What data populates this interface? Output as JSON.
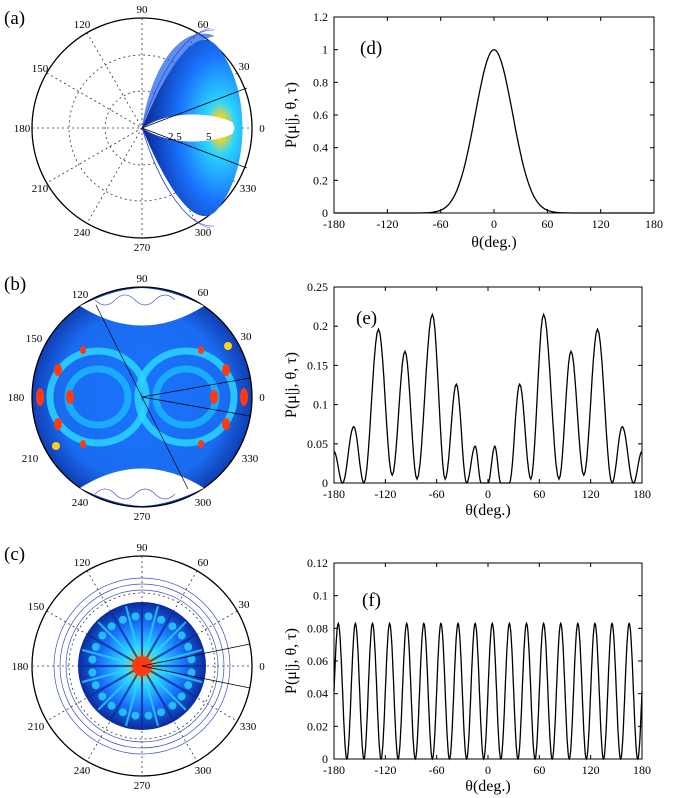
{
  "panel_labels": [
    "(a)",
    "(b)",
    "(c)",
    "(d)",
    "(e)",
    "(f)"
  ],
  "polar": {
    "angle_labels": [
      "90",
      "60",
      "30",
      "0",
      "330",
      "300",
      "270",
      "240",
      "210",
      "180",
      "150",
      "120"
    ],
    "radial_labels_a": [
      "2.5",
      "5"
    ],
    "colors": {
      "background": "#0b2a9a",
      "cool": "#1a74ff",
      "cyan": "#2ad6ff",
      "warm": "#ffd21a",
      "hot": "#ff3a10",
      "contour": "#3a4fc8"
    }
  },
  "chart_data": [
    {
      "panel": "(d)",
      "type": "line",
      "ylabel": "P(μ|j, θ, τ)",
      "xlabel": "θ(deg.)",
      "xlim": [
        -180,
        180
      ],
      "ylim": [
        0,
        1.2
      ],
      "xticks": [
        -180,
        -120,
        -60,
        0,
        60,
        120,
        180
      ],
      "yticks": [
        0,
        0.2,
        0.4,
        0.6,
        0.8,
        1,
        1.2
      ],
      "ytick_labels": [
        "0",
        "0.2",
        "0.4",
        "0.6",
        "0.8",
        "1",
        "1.2"
      ],
      "x": [
        -180,
        -80,
        -60,
        -45,
        -30,
        -20,
        -10,
        0,
        10,
        20,
        30,
        45,
        60,
        80,
        180
      ],
      "y": [
        0,
        0,
        0.01,
        0.08,
        0.33,
        0.61,
        0.88,
        1.0,
        0.88,
        0.61,
        0.33,
        0.08,
        0.01,
        0,
        0
      ],
      "grid": false
    },
    {
      "panel": "(e)",
      "type": "line",
      "ylabel": "P(μ|j, θ, τ)",
      "xlabel": "θ(deg.)",
      "xlim": [
        -180,
        180
      ],
      "ylim": [
        0,
        0.25
      ],
      "xticks": [
        -180,
        -120,
        -60,
        0,
        60,
        120,
        180
      ],
      "yticks": [
        0,
        0.05,
        0.1,
        0.15,
        0.2,
        0.25
      ],
      "ytick_labels": [
        "0",
        "0.05",
        "0.1",
        "0.15",
        "0.2",
        "0.25"
      ],
      "x": [
        -180,
        -170,
        -157,
        -145,
        -128,
        -112,
        -97,
        -83,
        -65,
        -50,
        -37,
        -25,
        -15,
        -8,
        0,
        8,
        15,
        25,
        37,
        50,
        65,
        83,
        97,
        112,
        128,
        145,
        157,
        170,
        180
      ],
      "y": [
        0.04,
        0.0,
        0.072,
        0.0,
        0.196,
        0.01,
        0.168,
        0.005,
        0.215,
        0.005,
        0.126,
        0.0,
        0.047,
        0.0,
        0.0,
        0.047,
        0.0,
        0.0,
        0.126,
        0.005,
        0.215,
        0.005,
        0.168,
        0.01,
        0.196,
        0.0,
        0.072,
        0.0,
        0.04
      ],
      "grid": false
    },
    {
      "panel": "(f)",
      "type": "line",
      "ylabel": "P(μ|j, θ, τ)",
      "xlabel": "θ(deg.)",
      "xlim": [
        -180,
        180
      ],
      "ylim": [
        0,
        0.12
      ],
      "xticks": [
        -180,
        -120,
        -60,
        0,
        60,
        120,
        180
      ],
      "yticks": [
        0,
        0.02,
        0.04,
        0.06,
        0.08,
        0.1,
        0.12
      ],
      "ytick_labels": [
        "0",
        "0.02",
        "0.04",
        "0.06",
        "0.08",
        "0.1",
        "0.12"
      ],
      "peak_value": 0.083,
      "period_deg": 20,
      "grid": false
    }
  ]
}
